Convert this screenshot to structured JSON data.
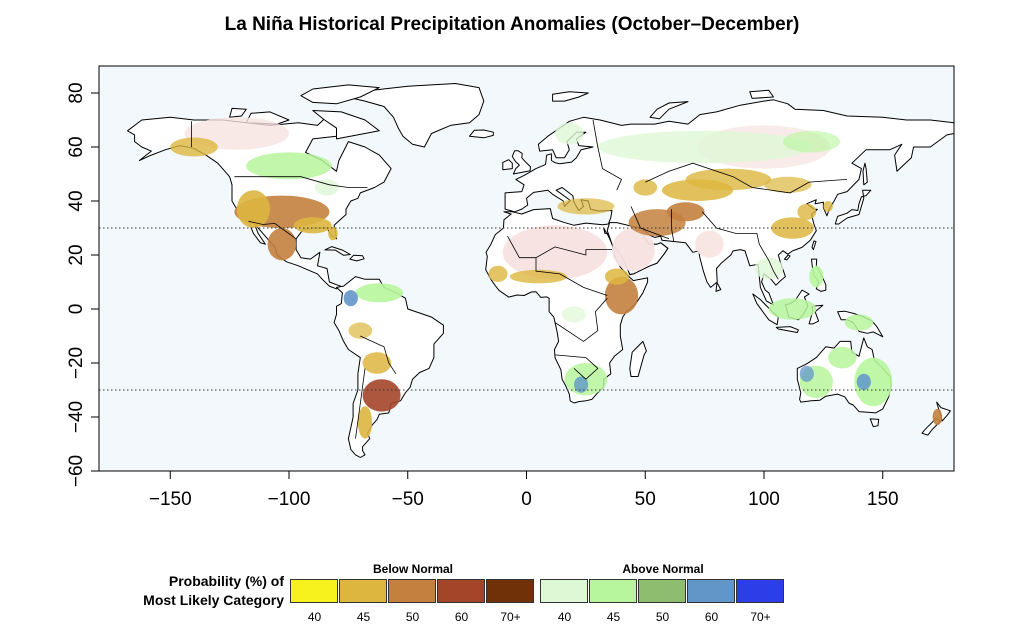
{
  "title": "La Niña Historical Precipitation Anomalies (October–December)",
  "chart_data": {
    "type": "map",
    "projection": "equirectangular",
    "xlim": [
      -180,
      180
    ],
    "ylim": [
      -60,
      90
    ],
    "x_ticks": [
      -150,
      -100,
      -50,
      0,
      50,
      100,
      150
    ],
    "y_ticks": [
      80,
      60,
      40,
      20,
      0,
      -20,
      -40,
      -60
    ],
    "x_tick_labels": [
      "−150",
      "−100",
      "−50",
      "0",
      "50",
      "100",
      "150"
    ],
    "y_tick_labels": [
      "80",
      "60",
      "40",
      "20",
      "0",
      "−20",
      "−40",
      "−60"
    ],
    "reference_lines_lat": [
      30,
      -30
    ],
    "ocean_color": "#f2f8fc",
    "dry_mask_color": "#f7e3e0",
    "legend_title_lines": [
      "Probability (%) of",
      "Most Likely Category"
    ],
    "legend": [
      {
        "name": "Below Normal",
        "bins": [
          "40",
          "45",
          "50",
          "60",
          "70+"
        ],
        "colors": [
          "#f7f21e",
          "#ddb63f",
          "#c3803e",
          "#a4452a",
          "#703008"
        ]
      },
      {
        "name": "Above Normal",
        "bins": [
          "40",
          "45",
          "50",
          "60",
          "70+"
        ],
        "colors": [
          "#def8d6",
          "#b7f69c",
          "#8ebd70",
          "#6296c9",
          "#2c3ee8"
        ]
      }
    ],
    "anomaly_regions": [
      {
        "region": "Southern United States / Mexico",
        "category": "Below Normal",
        "level": "50"
      },
      {
        "region": "Northwestern North America",
        "category": "Below Normal",
        "level": "45"
      },
      {
        "region": "Canadian Prairies",
        "category": "Above Normal",
        "level": "45"
      },
      {
        "region": "Southeastern South America",
        "category": "Below Normal",
        "level": "60"
      },
      {
        "region": "Northern South America",
        "category": "Above Normal",
        "level": "45"
      },
      {
        "region": "East Africa",
        "category": "Below Normal",
        "level": "50"
      },
      {
        "region": "Southern Africa",
        "category": "Above Normal",
        "level": "45"
      },
      {
        "region": "Middle East / Central Asia",
        "category": "Below Normal",
        "level": "50"
      },
      {
        "region": "Southern China",
        "category": "Below Normal",
        "level": "45"
      },
      {
        "region": "Maritime Continent",
        "category": "Above Normal",
        "level": "45"
      },
      {
        "region": "Eastern Australia",
        "category": "Above Normal",
        "level": "60"
      },
      {
        "region": "Northern Eurasia",
        "category": "Above Normal",
        "level": "40"
      },
      {
        "region": "Sahara / Arabia",
        "category": "Dry season mask",
        "level": ""
      }
    ]
  }
}
